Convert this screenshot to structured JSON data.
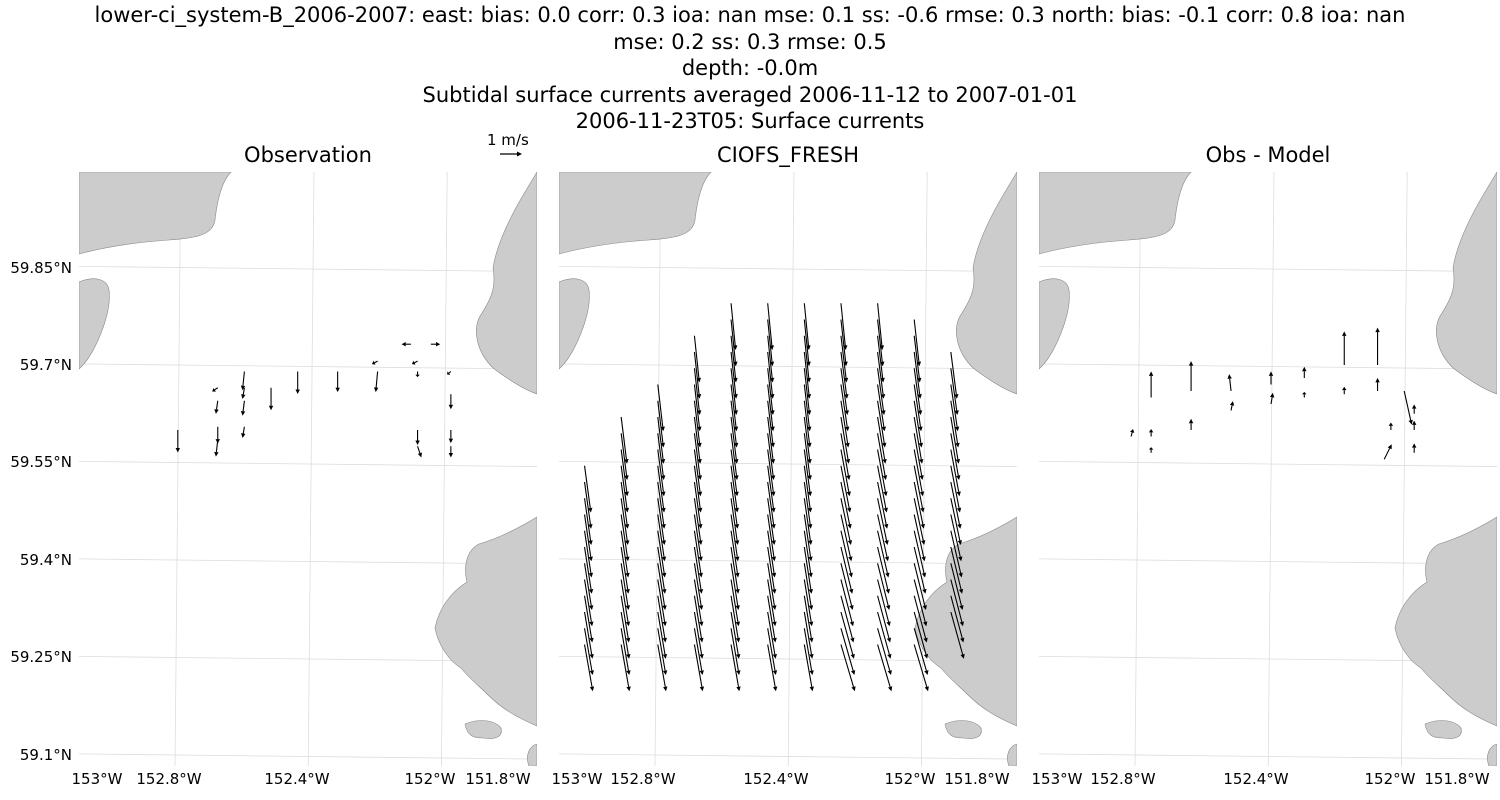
{
  "title": {
    "line1": "lower-ci_system-B_2006-2007: east: bias: 0.0  corr: 0.3  ioa: nan  mse: 0.1  ss: -0.6  rmse: 0.3  north: bias: -0.1  corr: 0.8  ioa: nan",
    "line2": "mse: 0.2  ss: 0.3  rmse: 0.5",
    "line3": "depth: -0.0m",
    "line4": "Subtidal surface currents averaged 2006-11-12 to 2007-01-01",
    "line5": "2006-11-23T05: Surface currents"
  },
  "scale": {
    "label": "1 m/s",
    "value_ms": 1
  },
  "colors": {
    "land": "#cccccc",
    "coast": "#888888",
    "grid": "#dddddd",
    "arrow": "#000000"
  },
  "chart_data": {
    "type": "quiver-map",
    "panels": [
      {
        "title": "Observation"
      },
      {
        "title": "CIOFS_FRESH"
      },
      {
        "title": "Obs - Model"
      }
    ],
    "lat_ticks": [
      "59.85°N",
      "59.7°N",
      "59.55°N",
      "59.4°N",
      "59.25°N",
      "59.1°N"
    ],
    "lon_ticks": [
      "153°W",
      "152.8°W",
      "152.4°W",
      "152°W",
      "151.8°W"
    ],
    "observation_vectors": [
      {
        "lon": -152.05,
        "lat": 59.732,
        "u": -0.25,
        "v": 0.0
      },
      {
        "lon": -152.02,
        "lat": 59.732,
        "u": 0.25,
        "v": 0.0
      },
      {
        "lon": -152.1,
        "lat": 59.706,
        "u": -0.15,
        "v": -0.08
      },
      {
        "lon": -152.04,
        "lat": 59.706,
        "u": -0.15,
        "v": -0.08
      },
      {
        "lon": -152.3,
        "lat": 59.69,
        "u": -0.05,
        "v": -0.5
      },
      {
        "lon": -152.22,
        "lat": 59.69,
        "u": 0.0,
        "v": -0.6
      },
      {
        "lon": -152.16,
        "lat": 59.69,
        "u": 0.0,
        "v": -0.55
      },
      {
        "lon": -152.1,
        "lat": 59.69,
        "u": -0.05,
        "v": -0.55
      },
      {
        "lon": -152.04,
        "lat": 59.69,
        "u": 0.0,
        "v": -0.15
      },
      {
        "lon": -151.99,
        "lat": 59.69,
        "u": -0.1,
        "v": -0.08
      },
      {
        "lon": -152.34,
        "lat": 59.665,
        "u": -0.15,
        "v": -0.1
      },
      {
        "lon": -152.3,
        "lat": 59.665,
        "u": -0.05,
        "v": -0.3
      },
      {
        "lon": -152.26,
        "lat": 59.665,
        "u": 0.0,
        "v": -0.6
      },
      {
        "lon": -152.34,
        "lat": 59.645,
        "u": -0.05,
        "v": -0.35
      },
      {
        "lon": -152.3,
        "lat": 59.645,
        "u": -0.05,
        "v": -0.4
      },
      {
        "lon": -151.99,
        "lat": 59.655,
        "u": 0.0,
        "v": -0.4
      },
      {
        "lon": -152.4,
        "lat": 59.6,
        "u": 0.0,
        "v": -0.6
      },
      {
        "lon": -152.34,
        "lat": 59.605,
        "u": 0.0,
        "v": -0.45
      },
      {
        "lon": -152.34,
        "lat": 59.585,
        "u": -0.05,
        "v": -0.45
      },
      {
        "lon": -152.3,
        "lat": 59.605,
        "u": -0.05,
        "v": -0.3
      },
      {
        "lon": -152.04,
        "lat": 59.6,
        "u": 0.0,
        "v": -0.4
      },
      {
        "lon": -152.04,
        "lat": 59.575,
        "u": 0.1,
        "v": -0.3
      },
      {
        "lon": -151.99,
        "lat": 59.6,
        "u": 0.0,
        "v": -0.35
      },
      {
        "lon": -151.99,
        "lat": 59.575,
        "u": 0.0,
        "v": -0.3
      }
    ],
    "difference_vectors": [
      {
        "lon": -152.41,
        "lat": 59.59,
        "u": 0.05,
        "v": 0.2
      },
      {
        "lon": -152.38,
        "lat": 59.65,
        "u": 0.0,
        "v": 0.7
      },
      {
        "lon": -152.38,
        "lat": 59.59,
        "u": 0.0,
        "v": 0.2
      },
      {
        "lon": -152.38,
        "lat": 59.565,
        "u": 0.0,
        "v": 0.15
      },
      {
        "lon": -152.32,
        "lat": 59.66,
        "u": 0.0,
        "v": 0.8
      },
      {
        "lon": -152.32,
        "lat": 59.6,
        "u": 0.0,
        "v": 0.3
      },
      {
        "lon": -152.26,
        "lat": 59.66,
        "u": -0.05,
        "v": 0.45
      },
      {
        "lon": -152.26,
        "lat": 59.63,
        "u": 0.05,
        "v": 0.25
      },
      {
        "lon": -152.2,
        "lat": 59.67,
        "u": 0.0,
        "v": 0.35
      },
      {
        "lon": -152.2,
        "lat": 59.64,
        "u": 0.05,
        "v": 0.3
      },
      {
        "lon": -152.15,
        "lat": 59.68,
        "u": 0.0,
        "v": 0.3
      },
      {
        "lon": -152.15,
        "lat": 59.65,
        "u": 0.0,
        "v": 0.15
      },
      {
        "lon": -152.09,
        "lat": 59.7,
        "u": 0.0,
        "v": 0.9
      },
      {
        "lon": -152.09,
        "lat": 59.655,
        "u": 0.0,
        "v": 0.2
      },
      {
        "lon": -152.04,
        "lat": 59.7,
        "u": 0.0,
        "v": 1.0
      },
      {
        "lon": -152.04,
        "lat": 59.66,
        "u": 0.0,
        "v": 0.35
      },
      {
        "lon": -152.0,
        "lat": 59.66,
        "u": 0.2,
        "v": -0.9
      },
      {
        "lon": -152.02,
        "lat": 59.6,
        "u": 0.0,
        "v": 0.2
      },
      {
        "lon": -152.03,
        "lat": 59.555,
        "u": 0.2,
        "v": 0.4
      },
      {
        "lon": -151.985,
        "lat": 59.625,
        "u": 0.0,
        "v": 0.25
      },
      {
        "lon": -151.985,
        "lat": 59.6,
        "u": 0.0,
        "v": 0.25
      },
      {
        "lon": -151.985,
        "lat": 59.565,
        "u": 0.0,
        "v": 0.25
      }
    ],
    "model_field": {
      "lat_min": 59.27,
      "lat_max": 59.81,
      "lat_step": 0.025,
      "lon_min": -152.73,
      "lon_max": -151.95,
      "lon_step": 0.055,
      "u_base": 0.12,
      "v_base": -1.25
    }
  }
}
